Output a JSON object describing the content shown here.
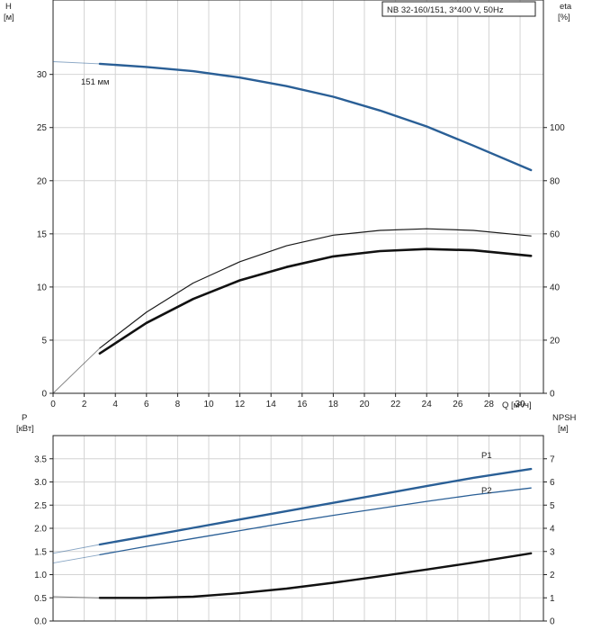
{
  "chart_data": [
    {
      "type": "line",
      "title": "NB 32-160/151, 3*400 V, 50Hz",
      "xlabel": "Q [м³/ч]",
      "ylabel_left": [
        "H",
        "[м]"
      ],
      "ylabel_right": [
        "eta",
        "[%]"
      ],
      "xlim": [
        0,
        31.5
      ],
      "xticks": [
        0,
        2,
        4,
        6,
        8,
        10,
        12,
        14,
        16,
        18,
        20,
        22,
        24,
        26,
        28,
        30
      ],
      "ylim_left": [
        0,
        37
      ],
      "yticks_left": [
        0,
        5,
        10,
        15,
        20,
        25,
        30
      ],
      "ylim_right": [
        0,
        148
      ],
      "yticks_right": [
        0,
        20,
        40,
        60,
        80,
        100
      ],
      "grid": true,
      "annotations": [
        {
          "text": "151 мм",
          "x": 2.0,
          "y": 31.3
        }
      ],
      "series": [
        {
          "axis": "left",
          "color": "#2a5f96",
          "width": 2.4,
          "x": [
            0,
            3,
            6,
            9,
            12,
            15,
            18,
            21,
            24,
            27,
            30.7
          ],
          "y": [
            31.2,
            31.0,
            30.7,
            30.3,
            29.7,
            28.9,
            27.9,
            26.6,
            25.1,
            23.3,
            21.0
          ],
          "dashed_until": 3
        },
        {
          "axis": "right",
          "color": "#1a1a1a",
          "width": 1.2,
          "x": [
            0,
            3,
            6,
            9,
            12,
            15,
            18,
            21,
            24,
            27,
            30.7
          ],
          "y": [
            0,
            17,
            30.5,
            41.5,
            49.5,
            55.5,
            59.5,
            61.3,
            61.9,
            61.3,
            59.2
          ],
          "dashed_until": 3
        },
        {
          "axis": "right",
          "color": "#111111",
          "width": 2.6,
          "x": [
            3,
            6,
            9,
            12,
            15,
            18,
            21,
            24,
            27,
            30.7
          ],
          "y": [
            15,
            26.5,
            35.5,
            42.5,
            47.5,
            51.5,
            53.5,
            54.3,
            53.8,
            51.7
          ]
        }
      ]
    },
    {
      "type": "line",
      "xlim": [
        0,
        31.5
      ],
      "ylabel_left": [
        "P",
        "[кВт]"
      ],
      "ylabel_right": [
        "NPSH",
        "[м]"
      ],
      "ylim_left": [
        0,
        4.0
      ],
      "yticks_left": [
        0.0,
        0.5,
        1.0,
        1.5,
        2.0,
        2.5,
        3.0,
        3.5
      ],
      "ylim_right": [
        0,
        8
      ],
      "yticks_right": [
        0,
        1,
        2,
        3,
        4,
        5,
        6,
        7
      ],
      "grid": true,
      "series": [
        {
          "name": "P1",
          "axis": "left",
          "color": "#2a5f96",
          "width": 2.4,
          "x": [
            0,
            3,
            6,
            9,
            12,
            15,
            18,
            21,
            24,
            27,
            30.7
          ],
          "y": [
            1.46,
            1.65,
            1.83,
            2.01,
            2.19,
            2.37,
            2.55,
            2.73,
            2.91,
            3.09,
            3.28
          ],
          "dashed_until": 3
        },
        {
          "name": "P2",
          "axis": "left",
          "color": "#2a5f96",
          "width": 1.3,
          "x": [
            0,
            3,
            6,
            9,
            12,
            15,
            18,
            21,
            24,
            27,
            30.7
          ],
          "y": [
            1.25,
            1.43,
            1.61,
            1.78,
            1.95,
            2.12,
            2.28,
            2.43,
            2.58,
            2.72,
            2.87
          ],
          "dashed_until": 3
        },
        {
          "name": "",
          "axis": "right",
          "color": "#111111",
          "width": 2.4,
          "x": [
            0,
            3,
            6,
            9,
            12,
            15,
            18,
            21,
            24,
            27,
            30.7
          ],
          "y": [
            1.05,
            1.0,
            1.0,
            1.05,
            1.2,
            1.4,
            1.65,
            1.93,
            2.22,
            2.52,
            2.92
          ],
          "dashed_until": 3
        }
      ]
    }
  ]
}
